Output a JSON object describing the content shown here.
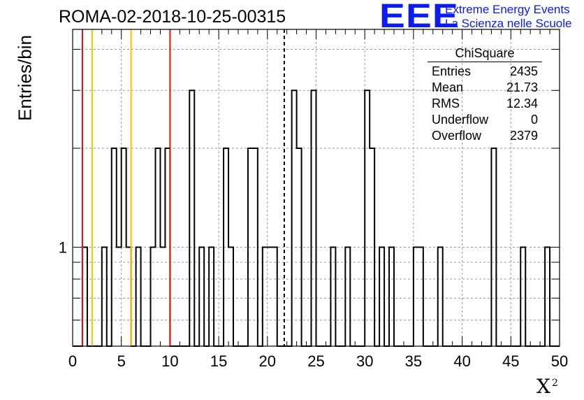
{
  "title": "ROMA-02-2018-10-25-00315",
  "logo": {
    "text": "EEE",
    "line1": "Extreme Energy Events",
    "line2": "La Scienza nelle Scuole",
    "color": "#0b1cf0"
  },
  "colors": {
    "histogram": "#000000",
    "red_lines": "#dd1111",
    "yellow_lines": "#f2c300",
    "grid": "#9a9a9a"
  },
  "stats_box": {
    "title": "ChiSquare",
    "rows": [
      {
        "label": "Entries",
        "value": "2435"
      },
      {
        "label": "Mean",
        "value": "21.73"
      },
      {
        "label": "RMS",
        "value": "12.34"
      },
      {
        "label": "Underflow",
        "value": "0"
      },
      {
        "label": "Overflow",
        "value": "2379"
      }
    ]
  },
  "chart_data": {
    "type": "histogram",
    "title": "ROMA-02-2018-10-25-00315",
    "xlabel": "X",
    "xlabel_superscript": "2",
    "ylabel": "Entries/bin",
    "xlim": [
      0,
      50
    ],
    "ylim": [
      0.5,
      4.6
    ],
    "log_y": true,
    "grid": true,
    "x_ticks": [
      0,
      5,
      10,
      15,
      20,
      25,
      30,
      35,
      40,
      45,
      50
    ],
    "y_tick_labels": [
      {
        "value": 1,
        "label": "1"
      }
    ],
    "bin_width": 0.5,
    "bins_x_start": [
      1.0,
      3.0,
      4.0,
      4.5,
      5.0,
      5.5,
      6.5,
      8.0,
      8.5,
      9.0,
      9.5,
      12.0,
      13.0,
      14.0,
      15.5,
      16.0,
      18.0,
      18.5,
      19.5,
      20.0,
      20.5,
      22.5,
      23.0,
      24.5,
      26.5,
      28.0,
      30.0,
      30.5,
      31.5,
      32.5,
      35.0,
      35.5,
      37.5,
      43.0,
      46.0,
      48.5
    ],
    "bins_content": [
      1,
      1,
      2,
      1,
      2,
      1,
      1,
      1,
      2,
      1,
      2,
      3,
      1,
      1,
      2,
      1,
      2,
      2,
      1,
      1,
      1,
      3,
      2,
      3,
      1,
      1,
      3,
      2,
      1,
      1,
      1,
      1,
      1,
      2,
      1,
      1
    ],
    "vertical_lines": [
      {
        "x": 1.0,
        "color": "red",
        "style": "solid"
      },
      {
        "x": 10.0,
        "color": "red",
        "style": "solid"
      },
      {
        "x": 2.0,
        "color": "yellow",
        "style": "solid"
      },
      {
        "x": 6.0,
        "color": "yellow",
        "style": "solid"
      },
      {
        "x": 21.73,
        "color": "black",
        "style": "dashed"
      }
    ]
  }
}
